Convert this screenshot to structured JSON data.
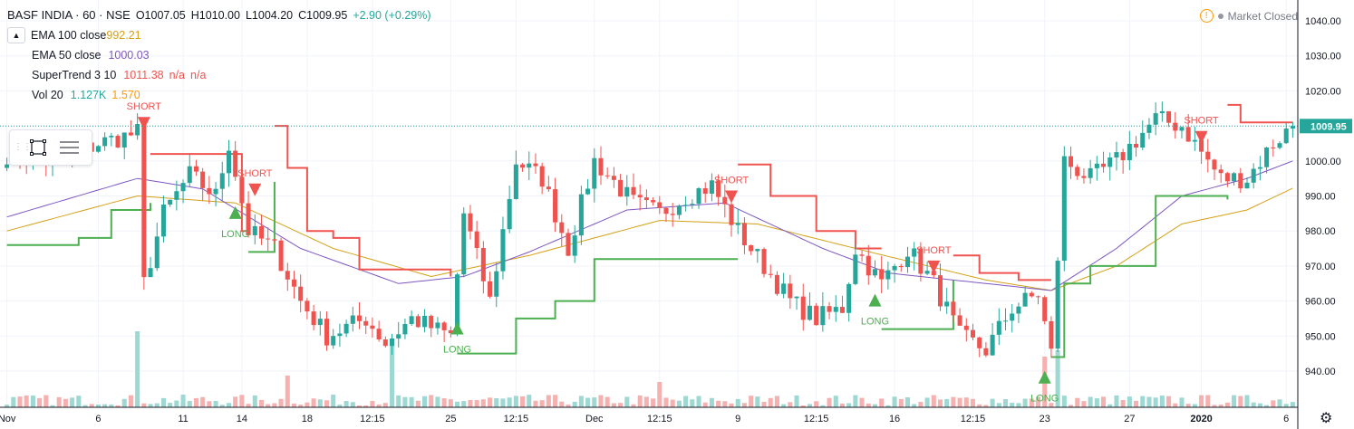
{
  "header": {
    "symbol": "BASF INDIA · 60 · NSE",
    "open": "O1007.05",
    "high": "H1010.00",
    "low": "L1004.20",
    "close": "C1009.95",
    "change": "+2.90 (+0.29%)",
    "collapse_glyph": "▲"
  },
  "indicators": {
    "ema100": {
      "name": "EMA 100 close",
      "value": "992.21",
      "color": "#d4a017"
    },
    "ema50": {
      "name": "EMA 50 close",
      "value": "1000.03",
      "color": "#7e57c2"
    },
    "supertrend": {
      "name": "SuperTrend 3 10",
      "value": "1011.38",
      "na1": "n/a",
      "na2": "n/a",
      "color": "#ef5350"
    },
    "volume": {
      "name": "Vol 20",
      "value": "1.127K",
      "ma": "1.570",
      "color": "#26a69a",
      "ma_color": "#ff9800"
    }
  },
  "market_status": "Market Closed",
  "colors": {
    "up": "#26a69a",
    "down": "#ef5350",
    "long": "#4caf50",
    "short": "#ef5350",
    "price_label": "#26a69a"
  },
  "chart_data": {
    "type": "candlestick",
    "y_axis": {
      "min": 930,
      "max": 1045,
      "ticks": [
        940,
        950,
        960,
        970,
        980,
        990,
        1000,
        1010,
        1020,
        1030,
        1040
      ]
    },
    "y_tick_labels": [
      "940.00",
      "950.00",
      "960.00",
      "970.00",
      "980.00",
      "990.00",
      "1000.00",
      "1010.00",
      "1020.00",
      "1030.00",
      "1040.00"
    ],
    "last_price": 1009.95,
    "last_price_label": "1009.95",
    "x_labels": [
      "Nov",
      "6",
      "11",
      "14",
      "18",
      "12:15",
      "25",
      "12:15",
      "Dec",
      "12:15",
      "9",
      "12:15",
      "16",
      "12:15",
      "23",
      "27",
      "2020",
      "6"
    ],
    "x_label_bar_index": [
      0,
      14,
      27,
      36,
      46,
      56,
      68,
      78,
      90,
      100,
      112,
      124,
      136,
      148,
      159,
      172,
      183,
      196
    ],
    "bar_count": 198,
    "anchors": [
      [
        0,
        1002
      ],
      [
        8,
        1000
      ],
      [
        14,
        1005
      ],
      [
        20,
        1008
      ],
      [
        21,
        965
      ],
      [
        24,
        985
      ],
      [
        28,
        996
      ],
      [
        32,
        990
      ],
      [
        34,
        1005
      ],
      [
        37,
        980
      ],
      [
        41,
        975
      ],
      [
        45,
        960
      ],
      [
        49,
        950
      ],
      [
        55,
        955
      ],
      [
        58,
        948
      ],
      [
        62,
        955
      ],
      [
        68,
        950
      ],
      [
        70,
        985
      ],
      [
        74,
        960
      ],
      [
        78,
        1000
      ],
      [
        82,
        995
      ],
      [
        86,
        975
      ],
      [
        90,
        1000
      ],
      [
        96,
        988
      ],
      [
        100,
        985
      ],
      [
        104,
        990
      ],
      [
        108,
        993
      ],
      [
        112,
        980
      ],
      [
        116,
        970
      ],
      [
        120,
        960
      ],
      [
        124,
        955
      ],
      [
        128,
        958
      ],
      [
        130,
        975
      ],
      [
        134,
        965
      ],
      [
        138,
        975
      ],
      [
        142,
        965
      ],
      [
        146,
        950
      ],
      [
        150,
        946
      ],
      [
        154,
        958
      ],
      [
        158,
        962
      ],
      [
        160,
        945
      ],
      [
        162,
        1000
      ],
      [
        166,
        995
      ],
      [
        170,
        1000
      ],
      [
        176,
        1012
      ],
      [
        180,
        1010
      ],
      [
        186,
        995
      ],
      [
        190,
        995
      ],
      [
        194,
        1005
      ],
      [
        197,
        1009.95
      ]
    ],
    "supertrend_segments": [
      {
        "trend": "up",
        "points": [
          [
            0,
            976
          ],
          [
            10,
            976
          ],
          [
            11,
            978
          ],
          [
            15,
            978
          ],
          [
            16,
            986
          ],
          [
            21,
            986
          ],
          [
            22,
            988
          ]
        ]
      },
      {
        "trend": "down",
        "points": [
          [
            22,
            1002
          ],
          [
            34,
            1002
          ],
          [
            36,
            980
          ],
          [
            37,
            980
          ]
        ]
      },
      {
        "trend": "up",
        "points": [
          [
            37,
            974
          ],
          [
            40,
            974
          ],
          [
            41,
            994
          ]
        ]
      },
      {
        "trend": "down",
        "points": [
          [
            41,
            1010
          ],
          [
            43,
            998
          ],
          [
            46,
            980
          ],
          [
            50,
            978
          ],
          [
            54,
            969
          ],
          [
            64,
            969
          ],
          [
            68,
            967
          ]
        ]
      },
      {
        "trend": "up",
        "points": [
          [
            69,
            945
          ],
          [
            75,
            945
          ],
          [
            78,
            955
          ],
          [
            84,
            960
          ],
          [
            90,
            972
          ],
          [
            112,
            972
          ]
        ]
      },
      {
        "trend": "down",
        "points": [
          [
            112,
            999
          ],
          [
            117,
            990
          ],
          [
            124,
            980
          ],
          [
            130,
            975
          ],
          [
            134,
            975
          ]
        ]
      },
      {
        "trend": "up",
        "points": [
          [
            134,
            952
          ],
          [
            144,
            952
          ],
          [
            145,
            966
          ]
        ]
      },
      {
        "trend": "down",
        "points": [
          [
            145,
            973
          ],
          [
            149,
            968
          ],
          [
            155,
            966
          ],
          [
            160,
            966
          ]
        ]
      },
      {
        "trend": "up",
        "points": [
          [
            160,
            944
          ],
          [
            162,
            965
          ],
          [
            166,
            970
          ],
          [
            172,
            970
          ],
          [
            176,
            990
          ],
          [
            186,
            990
          ],
          [
            187,
            989
          ]
        ]
      },
      {
        "trend": "down",
        "points": [
          [
            187,
            1016
          ],
          [
            189,
            1011
          ],
          [
            197,
            1011
          ]
        ]
      }
    ],
    "signals": [
      {
        "type": "SHORT",
        "bar": 21,
        "price": 1011
      },
      {
        "type": "LONG",
        "bar": 35,
        "price": 985
      },
      {
        "type": "SHORT",
        "bar": 38,
        "price": 992
      },
      {
        "type": "LONG",
        "bar": 69,
        "price": 952
      },
      {
        "type": "SHORT",
        "bar": 111,
        "price": 990
      },
      {
        "type": "LONG",
        "bar": 133,
        "price": 960
      },
      {
        "type": "SHORT",
        "bar": 142,
        "price": 970
      },
      {
        "type": "LONG",
        "bar": 159,
        "price": 938
      },
      {
        "type": "SHORT",
        "bar": 183,
        "price": 1007
      }
    ],
    "signal_labels": {
      "long": "LONG",
      "short": "SHORT"
    },
    "ema50_anchors": [
      [
        0,
        984
      ],
      [
        20,
        995
      ],
      [
        30,
        992
      ],
      [
        45,
        975
      ],
      [
        60,
        965
      ],
      [
        70,
        967
      ],
      [
        80,
        974
      ],
      [
        95,
        986
      ],
      [
        110,
        988
      ],
      [
        125,
        975
      ],
      [
        135,
        968
      ],
      [
        150,
        965
      ],
      [
        160,
        963
      ],
      [
        170,
        975
      ],
      [
        180,
        990
      ],
      [
        190,
        995
      ],
      [
        197,
        1000
      ]
    ],
    "ema100_anchors": [
      [
        0,
        980
      ],
      [
        20,
        990
      ],
      [
        35,
        988
      ],
      [
        50,
        975
      ],
      [
        65,
        967
      ],
      [
        80,
        973
      ],
      [
        100,
        983
      ],
      [
        115,
        982
      ],
      [
        130,
        975
      ],
      [
        150,
        966
      ],
      [
        160,
        963
      ],
      [
        170,
        970
      ],
      [
        180,
        982
      ],
      [
        190,
        986
      ],
      [
        197,
        992.21
      ]
    ],
    "volume_spikes": [
      [
        20,
        12
      ],
      [
        59,
        10
      ],
      [
        159,
        8
      ],
      [
        161,
        9
      ],
      [
        43,
        5
      ],
      [
        100,
        4
      ]
    ]
  }
}
